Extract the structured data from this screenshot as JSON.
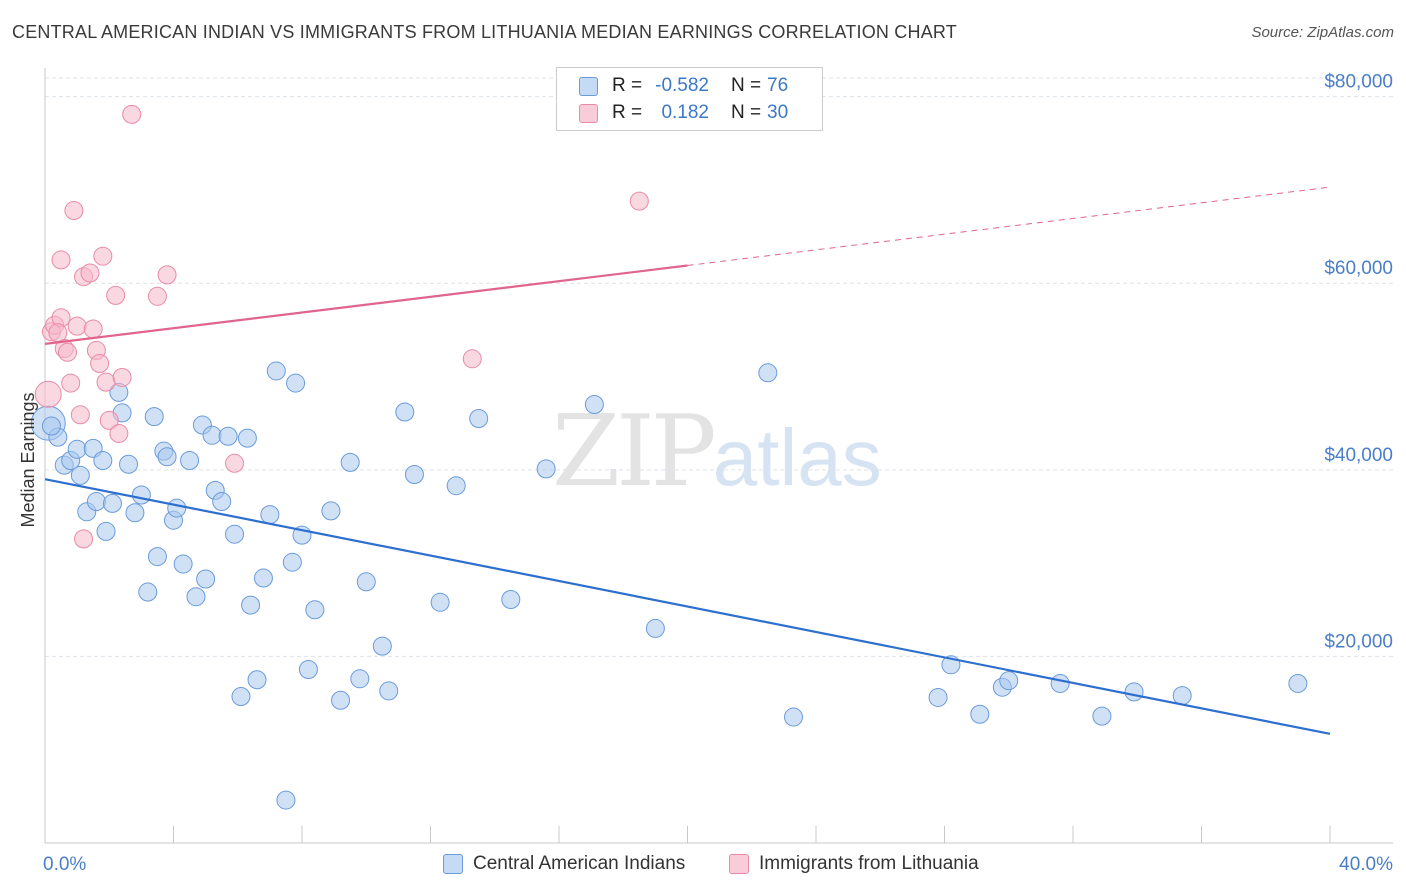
{
  "title": "CENTRAL AMERICAN INDIAN VS IMMIGRANTS FROM LITHUANIA MEDIAN EARNINGS CORRELATION CHART",
  "source": "Source: ZipAtlas.com",
  "watermark": {
    "zip": "ZIP",
    "atlas": "atlas"
  },
  "legend": {
    "rows": [
      {
        "r_label": "R =",
        "r_value": "-0.582",
        "n_label": "N =",
        "n_value": "76"
      },
      {
        "r_label": "R =",
        "r_value": "0.182",
        "n_label": "N =",
        "n_value": "30"
      }
    ]
  },
  "colors": {
    "blue_fill": "#a9c8ef",
    "blue_stroke": "#6a9bdb",
    "blue_line": "#2d6fcf",
    "pink_fill": "#f6b8ca",
    "pink_stroke": "#e98aa6",
    "pink_line": "#e0648c",
    "grid": "#dde3ea",
    "tick_text": "#4a7ec8"
  },
  "chart_data": {
    "type": "scatter",
    "title": "CENTRAL AMERICAN INDIAN VS IMMIGRANTS FROM LITHUANIA MEDIAN EARNINGS CORRELATION CHART",
    "xlabel": "",
    "ylabel": "Median Earnings",
    "xlim": [
      0,
      40
    ],
    "ylim": [
      0,
      82000
    ],
    "x_tick_labels": [
      "0.0%",
      "40.0%"
    ],
    "y_ticks": [
      20000,
      40000,
      60000,
      80000
    ],
    "y_tick_labels": [
      "$20,000",
      "$40,000",
      "$60,000",
      "$80,000"
    ],
    "grid": true,
    "legend_placement": "top-center",
    "series": [
      {
        "name": "Central American Indians",
        "trend": {
          "x": [
            0,
            40
          ],
          "y": [
            39000,
            11700
          ],
          "dashed_from": null
        },
        "points": [
          [
            0.1,
            45000
          ],
          [
            0.4,
            43500
          ],
          [
            0.6,
            40500
          ],
          [
            0.8,
            41000
          ],
          [
            1.0,
            42200
          ],
          [
            1.1,
            39400
          ],
          [
            1.3,
            35500
          ],
          [
            1.5,
            42300
          ],
          [
            1.6,
            36600
          ],
          [
            1.8,
            41000
          ],
          [
            1.9,
            33400
          ],
          [
            2.1,
            36400
          ],
          [
            2.3,
            48300
          ],
          [
            2.4,
            46100
          ],
          [
            2.6,
            40600
          ],
          [
            2.8,
            35400
          ],
          [
            3.0,
            37300
          ],
          [
            3.2,
            26900
          ],
          [
            3.4,
            45700
          ],
          [
            3.5,
            30700
          ],
          [
            3.7,
            42000
          ],
          [
            3.8,
            41400
          ],
          [
            4.0,
            34600
          ],
          [
            4.1,
            35900
          ],
          [
            4.3,
            29900
          ],
          [
            4.5,
            41000
          ],
          [
            4.7,
            26400
          ],
          [
            4.9,
            44800
          ],
          [
            5.0,
            28300
          ],
          [
            5.2,
            43700
          ],
          [
            5.3,
            37800
          ],
          [
            5.5,
            36600
          ],
          [
            5.7,
            43600
          ],
          [
            5.9,
            33100
          ],
          [
            6.1,
            15700
          ],
          [
            6.3,
            43400
          ],
          [
            6.4,
            25500
          ],
          [
            6.6,
            17500
          ],
          [
            6.8,
            28400
          ],
          [
            7.0,
            35200
          ],
          [
            7.2,
            50600
          ],
          [
            7.5,
            4600
          ],
          [
            7.7,
            30100
          ],
          [
            7.8,
            49300
          ],
          [
            8.0,
            33000
          ],
          [
            8.2,
            18600
          ],
          [
            8.4,
            25000
          ],
          [
            8.9,
            35600
          ],
          [
            9.2,
            15300
          ],
          [
            9.5,
            40800
          ],
          [
            9.8,
            17600
          ],
          [
            10.0,
            28000
          ],
          [
            10.5,
            21100
          ],
          [
            10.7,
            16300
          ],
          [
            11.2,
            46200
          ],
          [
            11.5,
            39500
          ],
          [
            12.3,
            25800
          ],
          [
            12.8,
            38300
          ],
          [
            13.5,
            45500
          ],
          [
            14.5,
            26100
          ],
          [
            15.6,
            40100
          ],
          [
            17.1,
            47000
          ],
          [
            19.0,
            23000
          ],
          [
            22.5,
            50400
          ],
          [
            23.3,
            13500
          ],
          [
            27.8,
            15600
          ],
          [
            28.2,
            19100
          ],
          [
            29.1,
            13800
          ],
          [
            29.8,
            16700
          ],
          [
            30.0,
            17400
          ],
          [
            31.6,
            17100
          ],
          [
            32.9,
            13600
          ],
          [
            33.9,
            16200
          ],
          [
            35.4,
            15800
          ],
          [
            39.0,
            17100
          ],
          [
            0.2,
            44700
          ]
        ]
      },
      {
        "name": "Immigrants from Lithuania",
        "trend": {
          "x": [
            0,
            40
          ],
          "y": [
            53500,
            70300
          ],
          "dashed_from": 20
        },
        "points": [
          [
            0.1,
            48100
          ],
          [
            0.2,
            54800
          ],
          [
            0.3,
            55500
          ],
          [
            0.5,
            62500
          ],
          [
            0.6,
            53000
          ],
          [
            0.7,
            52600
          ],
          [
            0.8,
            49300
          ],
          [
            0.9,
            67800
          ],
          [
            1.0,
            55400
          ],
          [
            1.1,
            45900
          ],
          [
            1.2,
            60700
          ],
          [
            1.2,
            32600
          ],
          [
            1.4,
            61100
          ],
          [
            1.5,
            55100
          ],
          [
            1.6,
            52800
          ],
          [
            1.7,
            51400
          ],
          [
            1.8,
            62900
          ],
          [
            1.9,
            49400
          ],
          [
            2.0,
            45300
          ],
          [
            2.2,
            58700
          ],
          [
            2.3,
            43900
          ],
          [
            2.4,
            49900
          ],
          [
            2.7,
            78100
          ],
          [
            3.5,
            58600
          ],
          [
            3.8,
            60900
          ],
          [
            5.9,
            40700
          ],
          [
            13.3,
            51900
          ],
          [
            18.5,
            68800
          ],
          [
            0.5,
            56300
          ],
          [
            0.4,
            54700
          ]
        ]
      }
    ]
  }
}
